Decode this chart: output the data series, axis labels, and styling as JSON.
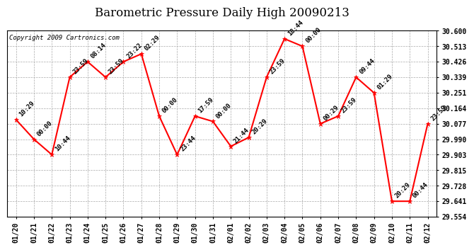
{
  "title": "Barometric Pressure Daily High 20090213",
  "copyright": "Copyright 2009 Cartronics.com",
  "x_labels": [
    "01/20",
    "01/21",
    "01/22",
    "01/23",
    "01/24",
    "01/25",
    "01/26",
    "01/27",
    "01/28",
    "01/29",
    "01/30",
    "01/31",
    "02/01",
    "02/02",
    "02/03",
    "02/04",
    "02/05",
    "02/06",
    "02/07",
    "02/08",
    "02/09",
    "02/10",
    "02/11",
    "02/12"
  ],
  "y_values": [
    30.1,
    29.99,
    29.903,
    30.339,
    30.426,
    30.339,
    30.426,
    30.47,
    30.12,
    29.903,
    30.12,
    30.09,
    29.95,
    30.0,
    30.339,
    30.555,
    30.513,
    30.077,
    30.12,
    30.339,
    30.251,
    29.641,
    29.641,
    30.077
  ],
  "point_labels": [
    "10:29",
    "00:00",
    "10:44",
    "23:59",
    "08:14",
    "23:59",
    "23:22",
    "02:29",
    "00:00",
    "23:44",
    "17:59",
    "00:00",
    "21:44",
    "20:29",
    "23:59",
    "18:44",
    "00:00",
    "00:29",
    "23:59",
    "09:44",
    "01:29",
    "20:29",
    "00:44",
    "23:59"
  ],
  "ylim": [
    29.554,
    30.6
  ],
  "yticks": [
    29.554,
    29.641,
    29.728,
    29.815,
    29.903,
    29.99,
    30.077,
    30.164,
    30.251,
    30.339,
    30.426,
    30.513,
    30.6
  ],
  "line_color": "#FF0000",
  "marker_color": "#FF0000",
  "bg_color": "#FFFFFF",
  "grid_color": "#AAAAAA",
  "title_fontsize": 12,
  "label_fontsize": 6.5,
  "tick_fontsize": 7,
  "copyright_fontsize": 6.5
}
